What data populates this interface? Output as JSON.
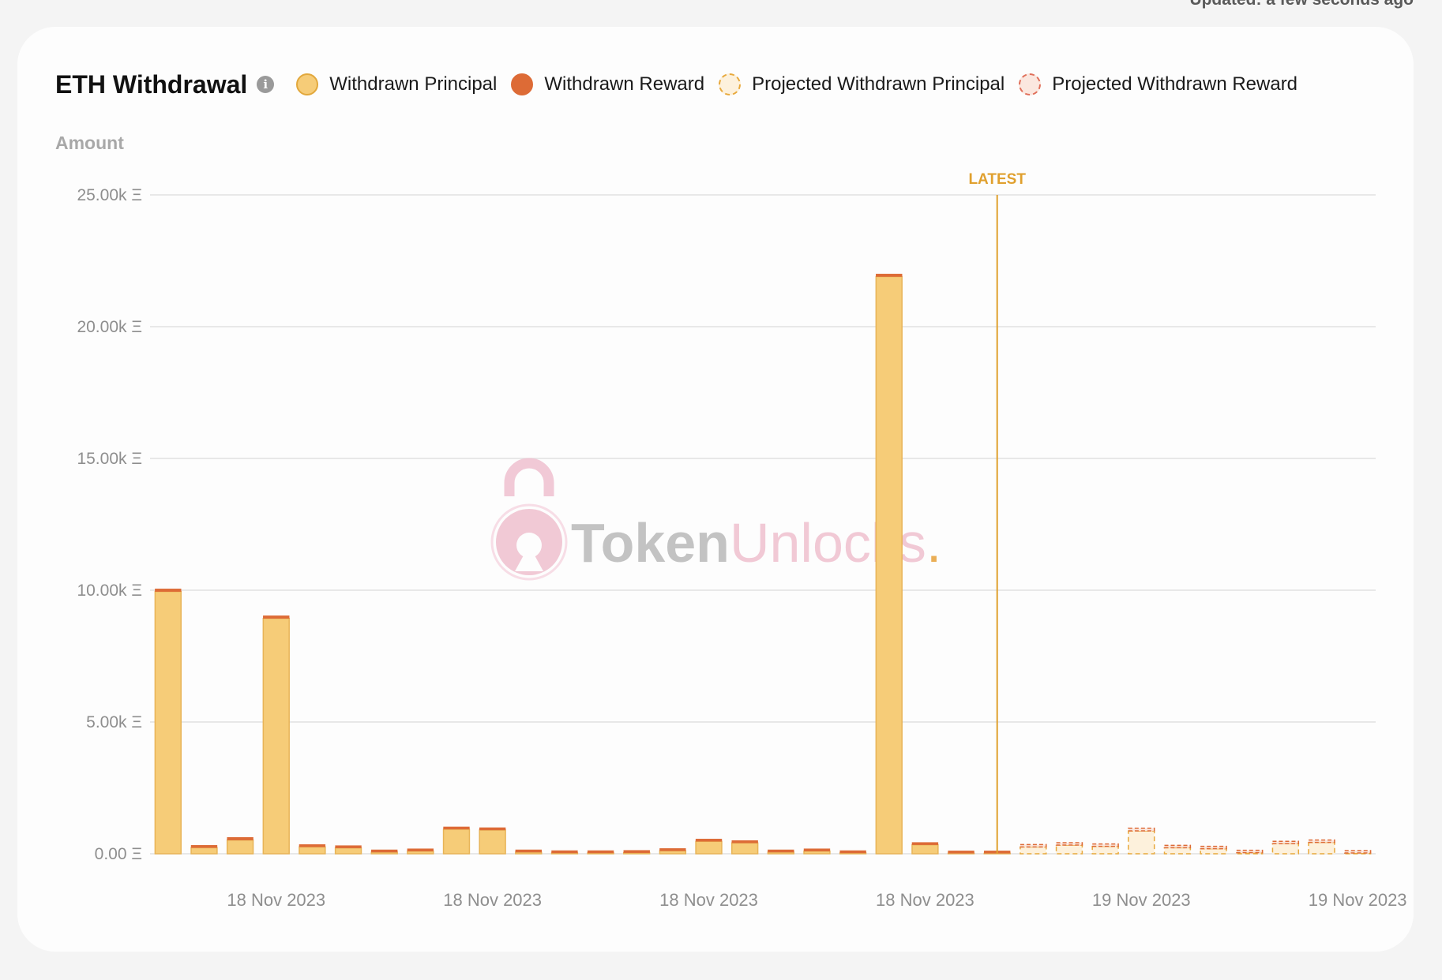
{
  "updated_text": "Updated: a few seconds ago",
  "title": "ETH Withdrawal",
  "legend": [
    {
      "label": "Withdrawn Principal",
      "kind": "principal",
      "color": "#f6cc78"
    },
    {
      "label": "Withdrawn Reward",
      "kind": "reward",
      "color": "#dd6b36"
    },
    {
      "label": "Projected Withdrawn Principal",
      "kind": "proj-principal",
      "color": "#fdf1dc"
    },
    {
      "label": "Projected Withdrawn Reward",
      "kind": "proj-reward",
      "color": "#fbe7df"
    }
  ],
  "watermark": {
    "part1": "Token",
    "part2": "Unlocks",
    "dot": "."
  },
  "chart_data": {
    "type": "bar",
    "stacked": true,
    "ylabel": "Amount",
    "ylim": [
      0,
      25000
    ],
    "yticks": [
      {
        "value": 0,
        "label": "0.00 Ξ"
      },
      {
        "value": 5000,
        "label": "5.00k Ξ"
      },
      {
        "value": 10000,
        "label": "10.00k Ξ"
      },
      {
        "value": 15000,
        "label": "15.00k Ξ"
      },
      {
        "value": 20000,
        "label": "20.00k Ξ"
      },
      {
        "value": 25000,
        "label": "25.00k Ξ"
      }
    ],
    "xtick_labels": [
      {
        "index": 3,
        "label": "18 Nov 2023"
      },
      {
        "index": 9,
        "label": "18 Nov 2023"
      },
      {
        "index": 15,
        "label": "18 Nov 2023"
      },
      {
        "index": 21,
        "label": "18 Nov 2023"
      },
      {
        "index": 27,
        "label": "19 Nov 2023"
      },
      {
        "index": 33,
        "label": "19 Nov 2023"
      }
    ],
    "latest": {
      "after_index": 23,
      "label": "LATEST"
    },
    "bar_count": 34,
    "series": [
      {
        "name": "Withdrawn Principal",
        "values": [
          9950,
          230,
          520,
          8930,
          260,
          220,
          60,
          100,
          930,
          900,
          60,
          30,
          30,
          40,
          110,
          470,
          410,
          60,
          100,
          30,
          21900,
          340,
          20,
          20,
          null,
          null,
          null,
          null,
          null,
          null,
          null,
          null,
          null,
          null
        ]
      },
      {
        "name": "Withdrawn Reward",
        "values": [
          100,
          90,
          100,
          100,
          90,
          90,
          70,
          80,
          80,
          90,
          70,
          70,
          70,
          80,
          80,
          90,
          90,
          70,
          70,
          70,
          100,
          90,
          70,
          60,
          null,
          null,
          null,
          null,
          null,
          null,
          null,
          null,
          null,
          null
        ]
      },
      {
        "name": "Projected Withdrawn Principal",
        "values": [
          null,
          null,
          null,
          null,
          null,
          null,
          null,
          null,
          null,
          null,
          null,
          null,
          null,
          null,
          null,
          null,
          null,
          null,
          null,
          null,
          null,
          null,
          null,
          null,
          260,
          330,
          280,
          870,
          230,
          190,
          40,
          380,
          430,
          30
        ]
      },
      {
        "name": "Projected Withdrawn Reward",
        "values": [
          null,
          null,
          null,
          null,
          null,
          null,
          null,
          null,
          null,
          null,
          null,
          null,
          null,
          null,
          null,
          null,
          null,
          null,
          null,
          null,
          null,
          null,
          null,
          null,
          80,
          80,
          80,
          100,
          80,
          80,
          60,
          80,
          80,
          50
        ]
      }
    ],
    "colors": {
      "principal": "#f6cc78",
      "principal_stroke": "#e8b457",
      "reward": "#dd6b36",
      "proj_principal": "#fdf1dc",
      "proj_principal_stroke": "#e8a93c",
      "proj_reward": "#fbe7df",
      "proj_reward_stroke": "#dd6b36",
      "latest": "#e0a02e",
      "grid": "#e2e2e2"
    }
  }
}
